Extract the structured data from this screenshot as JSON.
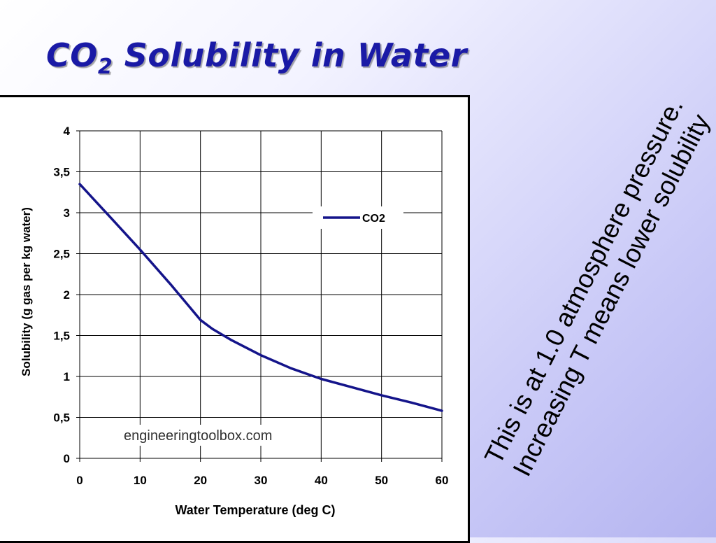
{
  "slide": {
    "title_main": "CO",
    "title_sub": "2",
    "title_rest": " Solubility in Water",
    "note_line1": "This is at 1.0 atmosphere pressure.",
    "note_line2": "Increasing T means lower solubility"
  },
  "chart_data": {
    "type": "line",
    "xlabel": "Water Temperature (deg C)",
    "ylabel": "Solubility (g gas per kg water)",
    "xlim": [
      0,
      60
    ],
    "ylim": [
      0,
      4
    ],
    "xticks": [
      0,
      10,
      20,
      30,
      40,
      50,
      60
    ],
    "xtick_labels": [
      "0",
      "10",
      "20",
      "30",
      "40",
      "50",
      "60"
    ],
    "yticks": [
      0,
      0.5,
      1,
      1.5,
      2,
      2.5,
      3,
      3.5,
      4
    ],
    "ytick_labels": [
      "0",
      "0,5",
      "1",
      "1,5",
      "2",
      "2,5",
      "3",
      "3,5",
      "4"
    ],
    "grid": true,
    "legend_position": "top-right",
    "watermark": "engineeringtoolbox.com",
    "series": [
      {
        "name": "CO2",
        "color": "#14148a",
        "x": [
          0,
          5,
          10,
          15,
          20,
          22,
          25,
          30,
          35,
          40,
          45,
          50,
          55,
          60
        ],
        "y": [
          3.35,
          2.95,
          2.55,
          2.13,
          1.69,
          1.58,
          1.45,
          1.26,
          1.1,
          0.97,
          0.87,
          0.77,
          0.68,
          0.58
        ]
      }
    ]
  }
}
